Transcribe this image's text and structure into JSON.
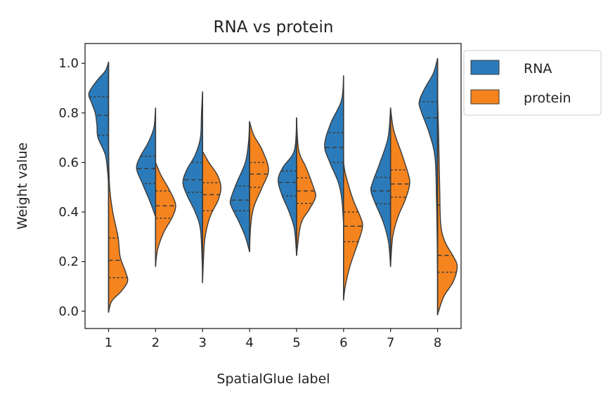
{
  "chart_data": {
    "type": "violin",
    "split": true,
    "title": "RNA vs protein",
    "xlabel": "SpatialGlue label",
    "ylabel": "Weight value",
    "categories": [
      "1",
      "2",
      "3",
      "4",
      "5",
      "6",
      "7",
      "8"
    ],
    "yticks": [
      "0.0",
      "0.2",
      "0.4",
      "0.6",
      "0.8",
      "1.0"
    ],
    "ylim": [
      -0.07,
      1.08
    ],
    "xlim": [
      0.5,
      8.5
    ],
    "legend": {
      "placement": "outside-top-right",
      "entries": [
        "RNA",
        "protein"
      ]
    },
    "grid": false,
    "colors": {
      "RNA": "#2b7bba",
      "protein": "#f5841f",
      "edge": "#3a3a3a"
    },
    "series": [
      {
        "name": "RNA",
        "violins": [
          {
            "quartiles": [
              0.71,
              0.79,
              0.865
            ],
            "density": [
              [
                1.005,
                0
              ],
              [
                0.97,
                0.15
              ],
              [
                0.93,
                0.55
              ],
              [
                0.88,
                0.93
              ],
              [
                0.84,
                0.8
              ],
              [
                0.8,
                0.63
              ],
              [
                0.75,
                0.55
              ],
              [
                0.7,
                0.5
              ],
              [
                0.63,
                0.15
              ],
              [
                0.55,
                0.03
              ],
              [
                0.5,
                0
              ]
            ]
          },
          {
            "quartiles": [
              0.515,
              0.575,
              0.625
            ],
            "density": [
              [
                0.82,
                0
              ],
              [
                0.74,
                0.08
              ],
              [
                0.68,
                0.35
              ],
              [
                0.62,
                0.75
              ],
              [
                0.575,
                0.9
              ],
              [
                0.52,
                0.65
              ],
              [
                0.45,
                0.3
              ],
              [
                0.4,
                0.08
              ],
              [
                0.38,
                0
              ]
            ]
          },
          {
            "quartiles": [
              0.48,
              0.53,
              0.6
            ],
            "density": [
              [
                0.885,
                0
              ],
              [
                0.8,
                0.05
              ],
              [
                0.7,
                0.1
              ],
              [
                0.63,
                0.35
              ],
              [
                0.57,
                0.75
              ],
              [
                0.52,
                0.93
              ],
              [
                0.47,
                0.75
              ],
              [
                0.4,
                0.35
              ],
              [
                0.33,
                0.1
              ],
              [
                0.2,
                0.02
              ],
              [
                0.115,
                0
              ]
            ]
          },
          {
            "quartiles": [
              0.405,
              0.448,
              0.505
            ],
            "density": [
              [
                0.765,
                0
              ],
              [
                0.68,
                0.05
              ],
              [
                0.6,
                0.2
              ],
              [
                0.52,
                0.6
              ],
              [
                0.45,
                0.9
              ],
              [
                0.42,
                0.85
              ],
              [
                0.36,
                0.5
              ],
              [
                0.3,
                0.2
              ],
              [
                0.24,
                0
              ]
            ]
          },
          {
            "quartiles": [
              0.465,
              0.52,
              0.566
            ],
            "density": [
              [
                0.78,
                0
              ],
              [
                0.65,
                0.1
              ],
              [
                0.58,
                0.65
              ],
              [
                0.53,
                0.87
              ],
              [
                0.47,
                0.7
              ],
              [
                0.4,
                0.35
              ],
              [
                0.33,
                0.1
              ],
              [
                0.225,
                0
              ]
            ]
          },
          {
            "quartiles": [
              0.6,
              0.66,
              0.72
            ],
            "density": [
              [
                0.95,
                0
              ],
              [
                0.85,
                0.1
              ],
              [
                0.76,
                0.6
              ],
              [
                0.67,
                0.9
              ],
              [
                0.6,
                0.65
              ],
              [
                0.52,
                0.25
              ],
              [
                0.45,
                0.08
              ],
              [
                0.35,
                0
              ]
            ]
          },
          {
            "quartiles": [
              0.433,
              0.485,
              0.54
            ],
            "density": [
              [
                0.82,
                0
              ],
              [
                0.7,
                0.12
              ],
              [
                0.6,
                0.5
              ],
              [
                0.52,
                0.85
              ],
              [
                0.485,
                0.93
              ],
              [
                0.44,
                0.75
              ],
              [
                0.36,
                0.35
              ],
              [
                0.28,
                0.1
              ],
              [
                0.18,
                0
              ]
            ]
          },
          {
            "quartiles": [
              0.575,
              0.78,
              0.845
            ],
            "density": [
              [
                1.02,
                0
              ],
              [
                0.96,
                0.2
              ],
              [
                0.9,
                0.6
              ],
              [
                0.845,
                0.87
              ],
              [
                0.8,
                0.75
              ],
              [
                0.72,
                0.4
              ],
              [
                0.62,
                0.12
              ],
              [
                0.45,
                0.05
              ],
              [
                0.3,
                0.02
              ],
              [
                0.14,
                0
              ]
            ]
          }
        ]
      },
      {
        "name": "protein",
        "violins": [
          {
            "quartiles": [
              0.135,
              0.205,
              0.295
            ],
            "density": [
              [
                0.64,
                0
              ],
              [
                0.5,
                0.05
              ],
              [
                0.4,
                0.2
              ],
              [
                0.3,
                0.45
              ],
              [
                0.22,
                0.55
              ],
              [
                0.16,
                0.8
              ],
              [
                0.12,
                0.9
              ],
              [
                0.08,
                0.6
              ],
              [
                0.04,
                0.15
              ],
              [
                -0.005,
                0
              ]
            ]
          },
          {
            "quartiles": [
              0.375,
              0.425,
              0.485
            ],
            "density": [
              [
                0.6,
                0
              ],
              [
                0.55,
                0.25
              ],
              [
                0.49,
                0.65
              ],
              [
                0.43,
                0.95
              ],
              [
                0.38,
                0.8
              ],
              [
                0.32,
                0.4
              ],
              [
                0.25,
                0.1
              ],
              [
                0.18,
                0
              ]
            ]
          },
          {
            "quartiles": [
              0.405,
              0.47,
              0.518
            ],
            "density": [
              [
                0.645,
                0
              ],
              [
                0.6,
                0.3
              ],
              [
                0.55,
                0.7
              ],
              [
                0.5,
                0.87
              ],
              [
                0.45,
                0.75
              ],
              [
                0.38,
                0.35
              ],
              [
                0.3,
                0.12
              ],
              [
                0.22,
                0.05
              ],
              [
                0.115,
                0
              ]
            ]
          },
          {
            "quartiles": [
              0.5,
              0.553,
              0.6
            ],
            "density": [
              [
                0.765,
                0
              ],
              [
                0.71,
                0.2
              ],
              [
                0.65,
                0.6
              ],
              [
                0.57,
                0.9
              ],
              [
                0.5,
                0.6
              ],
              [
                0.42,
                0.2
              ],
              [
                0.34,
                0.05
              ],
              [
                0.24,
                0
              ]
            ]
          },
          {
            "quartiles": [
              0.435,
              0.485,
              0.538
            ],
            "density": [
              [
                0.78,
                0
              ],
              [
                0.65,
                0.1
              ],
              [
                0.58,
                0.45
              ],
              [
                0.5,
                0.8
              ],
              [
                0.46,
                0.9
              ],
              [
                0.41,
                0.6
              ],
              [
                0.35,
                0.2
              ],
              [
                0.225,
                0
              ]
            ]
          },
          {
            "quartiles": [
              0.28,
              0.343,
              0.4
            ],
            "density": [
              [
                0.6,
                0
              ],
              [
                0.55,
                0.1
              ],
              [
                0.45,
                0.45
              ],
              [
                0.38,
                0.8
              ],
              [
                0.34,
                0.9
              ],
              [
                0.28,
                0.7
              ],
              [
                0.18,
                0.3
              ],
              [
                0.1,
                0.08
              ],
              [
                0.045,
                0
              ]
            ]
          },
          {
            "quartiles": [
              0.46,
              0.513,
              0.57
            ],
            "density": [
              [
                0.82,
                0
              ],
              [
                0.73,
                0.15
              ],
              [
                0.63,
                0.55
              ],
              [
                0.55,
                0.85
              ],
              [
                0.51,
                0.9
              ],
              [
                0.45,
                0.7
              ],
              [
                0.38,
                0.35
              ],
              [
                0.3,
                0.1
              ],
              [
                0.18,
                0
              ]
            ]
          },
          {
            "quartiles": [
              0.157,
              0.225,
              0.428
            ],
            "density": [
              [
                0.87,
                0
              ],
              [
                0.7,
                0.05
              ],
              [
                0.5,
                0.1
              ],
              [
                0.35,
                0.15
              ],
              [
                0.28,
                0.35
              ],
              [
                0.22,
                0.75
              ],
              [
                0.18,
                0.93
              ],
              [
                0.12,
                0.75
              ],
              [
                0.06,
                0.3
              ],
              [
                0.0,
                0.05
              ],
              [
                -0.015,
                0
              ]
            ]
          }
        ]
      }
    ]
  }
}
